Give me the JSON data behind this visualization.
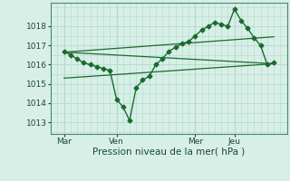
{
  "xlabel": "Pression niveau de la mer( hPa )",
  "bg_color": "#d8efe8",
  "grid_color": "#b8ddd0",
  "line_color": "#1a6b2e",
  "xlim": [
    0,
    108
  ],
  "ylim": [
    1012.4,
    1019.2
  ],
  "yticks": [
    1013,
    1014,
    1015,
    1016,
    1017,
    1018
  ],
  "xtick_labels": [
    "Mar",
    "Ven",
    "Mer",
    "Jeu"
  ],
  "xtick_positions": [
    6,
    30,
    66,
    84
  ],
  "vlines": [
    6,
    30,
    66,
    84
  ],
  "series1": {
    "x": [
      6,
      9,
      12,
      15,
      18,
      21,
      24,
      27,
      30,
      33,
      36,
      39,
      42,
      45,
      48,
      51,
      54,
      57,
      60,
      63,
      66,
      69,
      72,
      75,
      78,
      81,
      84,
      87,
      90,
      93,
      96,
      99,
      102
    ],
    "y": [
      1016.7,
      1016.5,
      1016.3,
      1016.1,
      1016.0,
      1015.9,
      1015.8,
      1015.7,
      1014.2,
      1013.8,
      1013.1,
      1014.8,
      1015.2,
      1015.4,
      1016.0,
      1016.3,
      1016.7,
      1016.9,
      1017.1,
      1017.2,
      1017.5,
      1017.8,
      1018.0,
      1018.2,
      1018.1,
      1018.0,
      1018.9,
      1018.3,
      1017.9,
      1017.4,
      1017.0,
      1016.0,
      1016.1
    ],
    "marker": "D",
    "markersize": 2.5,
    "linewidth": 1.0
  },
  "series2": {
    "x": [
      6,
      102
    ],
    "y": [
      1016.65,
      1016.05
    ],
    "linewidth": 0.9
  },
  "series3": {
    "x": [
      6,
      102
    ],
    "y": [
      1015.3,
      1016.05
    ],
    "linewidth": 0.9
  },
  "series4": {
    "x": [
      6,
      102
    ],
    "y": [
      1016.65,
      1017.45
    ],
    "linewidth": 0.9
  }
}
